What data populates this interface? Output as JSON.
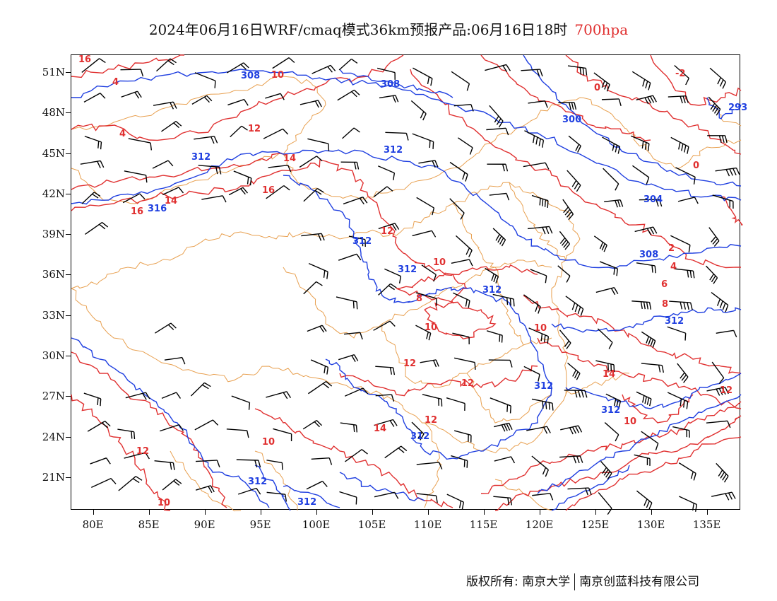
{
  "title": {
    "main": "2024年06月16日WRF/cmaq模式36km预报产品:06月16日18时",
    "level": "700hpa"
  },
  "axes": {
    "lat_labels": [
      "51N",
      "48N",
      "45N",
      "42N",
      "39N",
      "36N",
      "33N",
      "30N",
      "27N",
      "24N",
      "21N"
    ],
    "lon_labels": [
      "80E",
      "85E",
      "90E",
      "95E",
      "100E",
      "105E",
      "110E",
      "115E",
      "120E",
      "125E",
      "130E",
      "135E"
    ]
  },
  "map_extent": {
    "lon_min": 78,
    "lon_max": 138,
    "lat_min": 18.6,
    "lat_max": 52.3
  },
  "colors": {
    "height_contour": "#1f3fe0",
    "temperature_contour": "#e03030",
    "boundary": "#e8a050",
    "wind_barb": "#000000"
  },
  "height_contour_labels": [
    "308",
    "308",
    "300",
    "293",
    "312",
    "312",
    "304",
    "312",
    "312",
    "308",
    "312",
    "312",
    "312",
    "312",
    "316",
    "312",
    "312",
    "312"
  ],
  "temperature_contour_labels": [
    "10",
    "4",
    "4",
    "12",
    "14",
    "16",
    "14",
    "16",
    "12",
    "10",
    "8",
    "10",
    "10",
    "12",
    "12",
    "12",
    "14",
    "12",
    "10",
    "10",
    "14",
    "16",
    "0",
    "-2",
    "0",
    "2",
    "4",
    "6",
    "8",
    "10",
    "12"
  ],
  "copyright": {
    "left": "版权所有: 南京大学",
    "right": "南京创蓝科技有限公司"
  }
}
